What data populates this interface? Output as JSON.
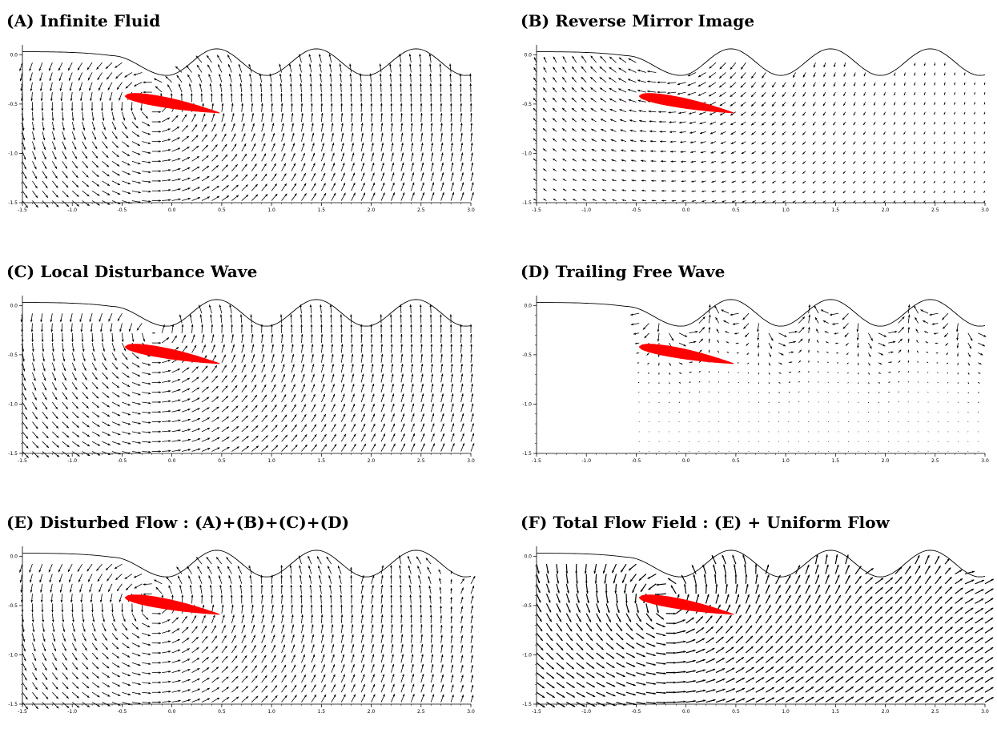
{
  "chart_data": [
    {
      "type": "quiver",
      "title": "(A) Infinite Fluid",
      "xlabel": "",
      "ylabel": "",
      "xlim": [
        -1.5,
        3.0
      ],
      "ylim": [
        -1.5,
        0.1
      ],
      "x_ticks": [
        "-1.5",
        "-1.0",
        "-0.5",
        "0.0",
        "0.5",
        "1.0",
        "1.5",
        "2.0",
        "2.5",
        "3.0"
      ],
      "y_ticks": [
        "0.0",
        "-0.5",
        "-1.0",
        "-1.5"
      ],
      "components": [
        "vortex",
        "fill_below"
      ],
      "field_min_x": -1.5,
      "vortex_strength": 0.35,
      "arrow_scale": 1.0,
      "grid": false,
      "foil": {
        "leading_edge": [
          -0.47,
          -0.42
        ],
        "trailing_edge": [
          0.48,
          -0.59
        ],
        "color": "#ff0000"
      }
    },
    {
      "type": "quiver",
      "title": "(B) Reverse Mirror Image",
      "xlabel": "",
      "ylabel": "",
      "xlim": [
        -1.5,
        3.0
      ],
      "ylim": [
        -1.5,
        0.1
      ],
      "x_ticks": [
        "-1.5",
        "-1.0",
        "-0.5",
        "0.0",
        "0.5",
        "1.0",
        "1.5",
        "2.0",
        "2.5",
        "3.0"
      ],
      "y_ticks": [
        "0.0",
        "-0.5",
        "-1.0",
        "-1.5"
      ],
      "components": [
        "mirror"
      ],
      "field_min_x": -1.5,
      "vortex_strength": 0.35,
      "arrow_scale": 1.0,
      "grid": false,
      "foil": {
        "leading_edge": [
          -0.47,
          -0.42
        ],
        "trailing_edge": [
          0.48,
          -0.59
        ],
        "color": "#ff0000"
      }
    },
    {
      "type": "quiver",
      "title": "(C) Local Disturbance Wave",
      "xlabel": "",
      "ylabel": "",
      "xlim": [
        -1.5,
        3.0
      ],
      "ylim": [
        -1.5,
        0.1
      ],
      "x_ticks": [
        "-1.5",
        "-1.0",
        "-0.5",
        "0.0",
        "0.5",
        "1.0",
        "1.5",
        "2.0",
        "2.5",
        "3.0"
      ],
      "y_ticks": [
        "0.0",
        "-0.5",
        "-1.0",
        "-1.5"
      ],
      "components": [
        "local"
      ],
      "field_min_x": -1.5,
      "vortex_strength": 0.35,
      "arrow_scale": 1.0,
      "grid": false,
      "foil": {
        "leading_edge": [
          -0.47,
          -0.42
        ],
        "trailing_edge": [
          0.48,
          -0.59
        ],
        "color": "#ff0000"
      }
    },
    {
      "type": "quiver",
      "title": "(D) Trailing Free Wave",
      "xlabel": "",
      "ylabel": "",
      "xlim": [
        -1.5,
        3.0
      ],
      "ylim": [
        -1.5,
        0.1
      ],
      "x_ticks": [
        "-1.5",
        "-1.0",
        "-0.5",
        "0.0",
        "0.5",
        "1.0",
        "1.5",
        "2.0",
        "2.5",
        "3.0"
      ],
      "y_ticks": [
        "0.0",
        "-0.5",
        "-1.0",
        "-1.5"
      ],
      "components": [
        "free"
      ],
      "field_min_x": -0.47,
      "vortex_strength": 0.35,
      "arrow_scale": 1.0,
      "grid": false,
      "foil": {
        "leading_edge": [
          -0.47,
          -0.42
        ],
        "trailing_edge": [
          0.48,
          -0.59
        ],
        "color": "#ff0000"
      }
    },
    {
      "type": "quiver",
      "title": "(E) Disturbed Flow : (A)+(B)+(C)+(D)",
      "xlabel": "",
      "ylabel": "",
      "xlim": [
        -1.5,
        3.0
      ],
      "ylim": [
        -1.5,
        0.1
      ],
      "x_ticks": [
        "-1.5",
        "-1.0",
        "-0.5",
        "0.0",
        "0.5",
        "1.0",
        "1.5",
        "2.0",
        "2.5",
        "3.0"
      ],
      "y_ticks": [
        "0.0",
        "-0.5",
        "-1.0",
        "-1.5"
      ],
      "components": [
        "sum"
      ],
      "field_min_x": -1.5,
      "vortex_strength": 0.35,
      "arrow_scale": 1.0,
      "grid": false,
      "foil": {
        "leading_edge": [
          -0.47,
          -0.42
        ],
        "trailing_edge": [
          0.48,
          -0.59
        ],
        "color": "#ff0000"
      }
    },
    {
      "type": "quiver",
      "title": "(F) Total Flow Field : (E) + Uniform Flow",
      "xlabel": "",
      "ylabel": "",
      "xlim": [
        -1.5,
        3.0
      ],
      "ylim": [
        -1.5,
        0.1
      ],
      "x_ticks": [
        "-1.5",
        "-1.0",
        "-0.5",
        "0.0",
        "0.5",
        "1.0",
        "1.5",
        "2.0",
        "2.5",
        "3.0"
      ],
      "y_ticks": [
        "0.0",
        "-0.5",
        "-1.0",
        "-1.5"
      ],
      "components": [
        "sum",
        "uniform"
      ],
      "field_min_x": -1.5,
      "vortex_strength": 0.35,
      "uniform_flow": 0.1,
      "arrow_scale": 0.9,
      "grid": false,
      "foil": {
        "leading_edge": [
          -0.47,
          -0.42
        ],
        "trailing_edge": [
          0.48,
          -0.59
        ],
        "color": "#ff0000"
      }
    }
  ]
}
